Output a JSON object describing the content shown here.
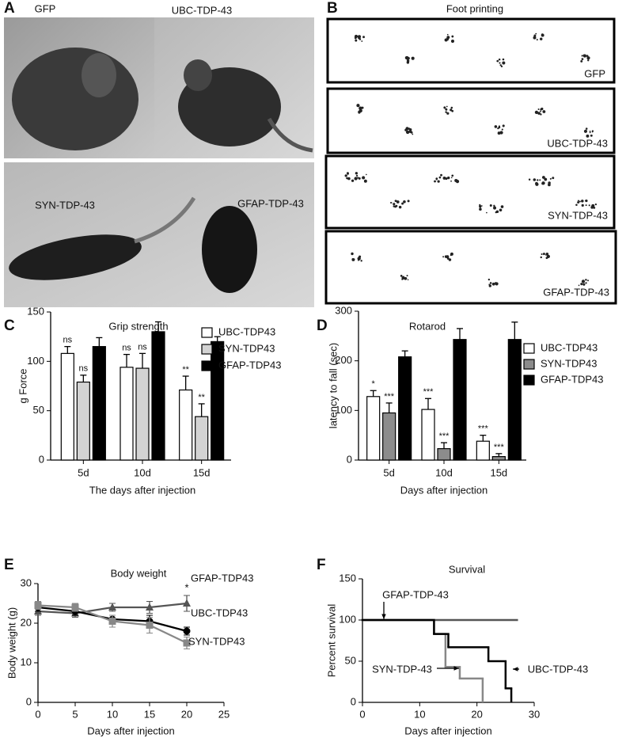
{
  "photos": {
    "label": "A",
    "captions": [
      "GFP",
      "UBC-TDP-43",
      "SYN-TDP-43",
      "GFAP-TDP-43"
    ]
  },
  "foot_printing": {
    "label": "B",
    "title": "Foot printing",
    "captions": [
      "GFP",
      "UBC-TDP-43",
      "SYN-TDP-43",
      "GFAP-TDP-43"
    ]
  },
  "chart_data": [
    {
      "panel": "C",
      "type": "bar",
      "title": "Grip strength",
      "categories": [
        "5d",
        "10d",
        "15d"
      ],
      "x_label": "The days after injection",
      "y_label": "g Force",
      "ylim": [
        0,
        150
      ],
      "yticks": [
        0,
        50,
        100,
        150
      ],
      "series": [
        {
          "name": "UBC-TDP43",
          "color": "#ffffff",
          "values": [
            108,
            94,
            71
          ],
          "errors": [
            7,
            13,
            14
          ],
          "significance": [
            "ns",
            "ns",
            "**"
          ]
        },
        {
          "name": "SYN-TDP43",
          "color": "#d3d3d3",
          "values": [
            79,
            93,
            44
          ],
          "errors": [
            7,
            15,
            13
          ],
          "significance": [
            "ns",
            "ns",
            "**"
          ]
        },
        {
          "name": "GFAP-TDP43",
          "color": "#000000",
          "values": [
            115,
            130,
            120
          ],
          "errors": [
            9,
            10,
            5
          ]
        }
      ]
    },
    {
      "panel": "D",
      "type": "bar",
      "title": "Rotarod",
      "categories": [
        "5d",
        "10d",
        "15d"
      ],
      "x_label": "Days after injection",
      "y_label": "latency to fall (sec)",
      "ylim": [
        0,
        300
      ],
      "yticks": [
        0,
        100,
        200,
        300
      ],
      "series": [
        {
          "name": "UBC-TDP43",
          "color": "#ffffff",
          "values": [
            128,
            102,
            38
          ],
          "errors": [
            12,
            22,
            12
          ],
          "significance": [
            "*",
            "***",
            "***"
          ]
        },
        {
          "name": "SYN-TDP43",
          "color": "#8c8c8c",
          "values": [
            95,
            23,
            7
          ],
          "errors": [
            20,
            12,
            6
          ],
          "significance": [
            "***",
            "***",
            "***"
          ]
        },
        {
          "name": "GFAP-TDP43",
          "color": "#000000",
          "values": [
            208,
            243,
            243
          ],
          "errors": [
            12,
            22,
            35
          ]
        }
      ]
    },
    {
      "panel": "E",
      "type": "line",
      "title": "Body weight",
      "x_label": "Days after injection",
      "y_label": "Body weight (g)",
      "x": [
        0,
        5,
        10,
        15,
        20
      ],
      "xlim": [
        0,
        25
      ],
      "xticks": [
        0,
        5,
        10,
        15,
        20,
        25
      ],
      "ylim": [
        0,
        30
      ],
      "yticks": [
        0,
        10,
        20,
        30
      ],
      "series": [
        {
          "name": "GFAP-TDP43",
          "color": "#555555",
          "marker": "triangle",
          "values": [
            23,
            22.5,
            24,
            24,
            25
          ],
          "errors": [
            1,
            1,
            1,
            1.5,
            2
          ],
          "significance": [
            null,
            null,
            null,
            null,
            "*"
          ]
        },
        {
          "name": "UBC-TDP43",
          "color": "#000000",
          "marker": "circle",
          "values": [
            24,
            23,
            21,
            20.5,
            18
          ],
          "errors": [
            1,
            1,
            1,
            1.5,
            1
          ]
        },
        {
          "name": "SYN-TDP43",
          "color": "#888888",
          "marker": "square",
          "values": [
            24.5,
            24,
            20.5,
            19.5,
            15
          ],
          "errors": [
            1,
            1,
            1.5,
            2,
            1.5
          ]
        }
      ]
    },
    {
      "panel": "F",
      "type": "step",
      "title": "Survival",
      "x_label": "Days after injection",
      "y_label": "Percent survival",
      "xlim": [
        0,
        30
      ],
      "xticks": [
        0,
        10,
        20,
        30
      ],
      "ylim": [
        0,
        150
      ],
      "yticks": [
        0,
        50,
        100,
        150
      ],
      "series": [
        {
          "name": "GFAP-TDP-43",
          "color": "#555555",
          "x": [
            0,
            27
          ],
          "values": [
            100,
            100
          ]
        },
        {
          "name": "SYN-TDP-43",
          "color": "#888888",
          "x": [
            0,
            12.5,
            14.5,
            17,
            21
          ],
          "values": [
            100,
            83,
            43,
            29,
            0
          ]
        },
        {
          "name": "UBC-TDP-43",
          "color": "#000000",
          "x": [
            0,
            12.5,
            15,
            22,
            25,
            26
          ],
          "values": [
            100,
            83,
            67,
            50,
            17,
            0
          ]
        }
      ]
    }
  ]
}
